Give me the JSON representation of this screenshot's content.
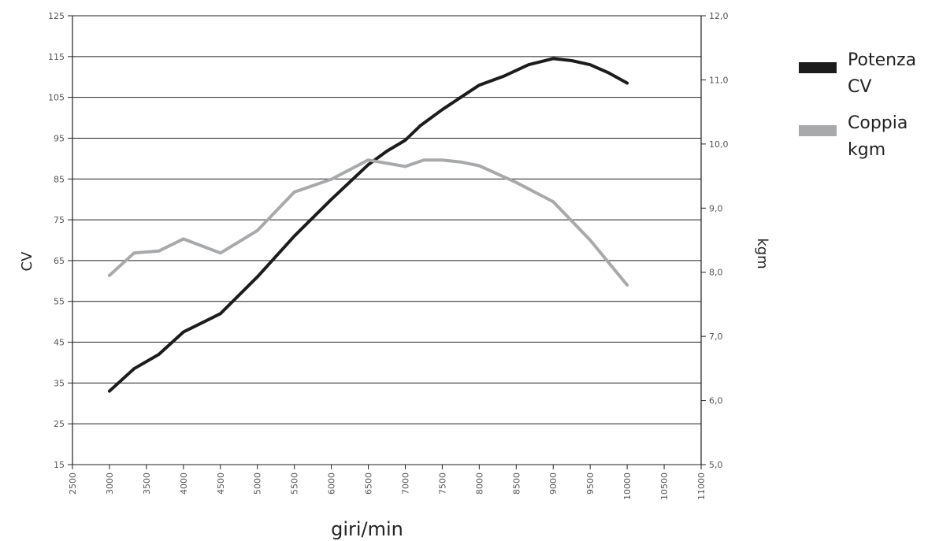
{
  "chart_data": {
    "type": "line",
    "xlabel": "giri/min",
    "ylabel": "CV",
    "y2label": "kgm",
    "xlim": [
      2500,
      11000
    ],
    "ylim": [
      15,
      125
    ],
    "y2lim": [
      5.0,
      12.0
    ],
    "x_ticks": [
      "2500",
      "3000",
      "3500",
      "4000",
      "4500",
      "5000",
      "5500",
      "6000",
      "6500",
      "7000",
      "7500",
      "8000",
      "8500",
      "9000",
      "9500",
      "10000",
      "10500",
      "11000"
    ],
    "y_ticks": [
      "15",
      "25",
      "35",
      "45",
      "55",
      "65",
      "75",
      "85",
      "95",
      "105",
      "115",
      "125"
    ],
    "y2_ticks": [
      "5,0",
      "6,0",
      "7,0",
      "8,0",
      "9,0",
      "10,0",
      "11,0",
      "12,0"
    ],
    "grid": "horizontal",
    "legend_position": "right",
    "series": [
      {
        "name": "Potenza CV",
        "axis": "left",
        "color": "#1c1c1c",
        "x": [
          3000,
          3333,
          3666,
          4000,
          4500,
          5000,
          5500,
          6000,
          6500,
          6750,
          7000,
          7200,
          7500,
          7750,
          8000,
          8333,
          8666,
          9000,
          9250,
          9500,
          9750,
          10000
        ],
        "y": [
          33,
          38.5,
          42,
          47.5,
          52,
          61,
          71,
          80,
          88.5,
          91.8,
          94.5,
          98,
          102,
          105,
          108,
          110.2,
          113,
          114.5,
          114,
          113,
          111,
          108.5
        ]
      },
      {
        "name": "Coppia kgm",
        "axis": "right",
        "color": "#a8a9ab",
        "x": [
          3000,
          3333,
          3666,
          4000,
          4500,
          5000,
          5500,
          6000,
          6500,
          7000,
          7250,
          7500,
          7750,
          8000,
          8500,
          9000,
          9500,
          10000
        ],
        "y": [
          7.95,
          8.3,
          8.33,
          8.52,
          8.3,
          8.65,
          9.25,
          9.45,
          9.75,
          9.65,
          9.75,
          9.75,
          9.72,
          9.66,
          9.4,
          9.1,
          8.5,
          7.8
        ]
      }
    ]
  },
  "legend": [
    {
      "line1": "Potenza",
      "line2": "CV",
      "color": "#1c1c1c"
    },
    {
      "line1": "Coppia",
      "line2": "kgm",
      "color": "#a8a9ab"
    }
  ]
}
